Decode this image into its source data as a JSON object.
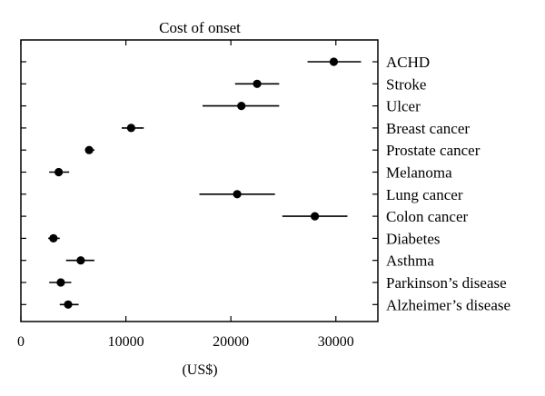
{
  "chart_data": {
    "type": "scatter",
    "title": "Cost of onset",
    "xlabel": "(US$)",
    "ylabel": "",
    "xlim": [
      0,
      34000
    ],
    "xticks": [
      0,
      10000,
      20000,
      30000
    ],
    "xtick_labels": [
      "0",
      "10000",
      "20000",
      "30000"
    ],
    "grid": false,
    "legend": "none",
    "marker_color": "#000000",
    "categories": [
      "ACHD",
      "Stroke",
      "Ulcer",
      "Breast cancer",
      "Prostate cancer",
      "Melanoma",
      "Lung cancer",
      "Colon cancer",
      "Diabetes",
      "Asthma",
      "Parkinson’s disease",
      "Alzheimer’s disease"
    ],
    "values": [
      29800,
      22500,
      21000,
      10500,
      6500,
      3600,
      20600,
      28000,
      3100,
      5700,
      3800,
      4500
    ],
    "error_low": [
      27300,
      20400,
      17300,
      9600,
      6100,
      2700,
      17000,
      24900,
      2600,
      4300,
      2700,
      3700
    ],
    "error_high": [
      32400,
      24600,
      24600,
      11700,
      7000,
      4600,
      24200,
      31100,
      3700,
      7000,
      4800,
      5500
    ]
  }
}
